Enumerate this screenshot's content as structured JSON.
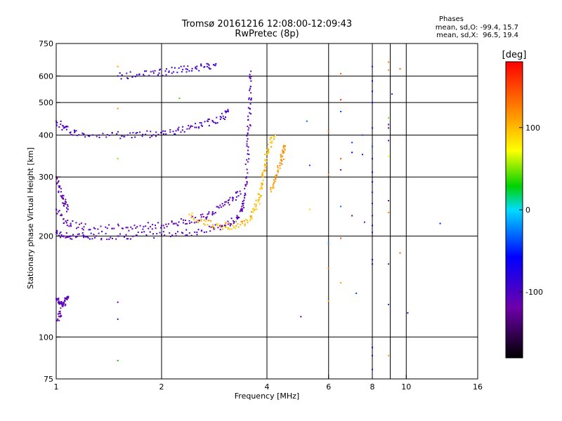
{
  "header": {
    "title": "Tromsø 20161216 12:08:00-12:09:43",
    "subtitle": "RwPretec (8p)"
  },
  "stats": {
    "heading": "Phases",
    "line_o": "mean, sd,O: -99.4, 15.7",
    "line_x": "mean, sd,X:  96.5, 19.4"
  },
  "chart_data": {
    "type": "scatter",
    "xlabel": "Frequency [MHz]",
    "ylabel": "Stationary phase Virtual Height [km]",
    "xscale": "log",
    "yscale": "log",
    "xlim": [
      1,
      16
    ],
    "ylim": [
      75,
      750
    ],
    "xticks": [
      1,
      2,
      4,
      6,
      8,
      10,
      16
    ],
    "xtick_labels": [
      "1",
      "2",
      "4",
      "6",
      "8",
      "10",
      "16"
    ],
    "yticks": [
      75,
      100,
      200,
      300,
      400,
      500,
      600,
      750
    ],
    "ytick_labels": [
      "75",
      "100",
      "200",
      "300",
      "400",
      "500",
      "600",
      "750"
    ],
    "xgrid": [
      2,
      4,
      6,
      8,
      9,
      10
    ],
    "ygrid": [
      100,
      200,
      300,
      400,
      500,
      600
    ],
    "grid": true,
    "colorbar": {
      "label": "[deg]",
      "range": [
        -180,
        180
      ],
      "ticks": [
        -100,
        0,
        100
      ],
      "tick_labels": [
        "-100",
        "0",
        "100"
      ]
    },
    "traces": [
      {
        "name": "O-mode low layer trace",
        "phase": -105,
        "points": [
          [
            1.0,
            205
          ],
          [
            1.05,
            200
          ],
          [
            1.1,
            200
          ],
          [
            1.2,
            200
          ],
          [
            1.3,
            200
          ],
          [
            1.5,
            200
          ],
          [
            1.7,
            201
          ],
          [
            2.0,
            202
          ],
          [
            2.3,
            204
          ],
          [
            2.6,
            207
          ],
          [
            2.9,
            212
          ],
          [
            3.1,
            217
          ],
          [
            3.3,
            226
          ],
          [
            3.4,
            240
          ],
          [
            3.45,
            260
          ],
          [
            3.5,
            300
          ],
          [
            3.53,
            360
          ],
          [
            3.55,
            420
          ],
          [
            3.57,
            480
          ],
          [
            3.58,
            550
          ],
          [
            3.6,
            620
          ]
        ]
      },
      {
        "name": "O-mode upper trace",
        "phase": -100,
        "points": [
          [
            1.0,
            440
          ],
          [
            1.05,
            420
          ],
          [
            1.1,
            408
          ],
          [
            1.2,
            403
          ],
          [
            1.4,
            401
          ],
          [
            1.6,
            400
          ],
          [
            1.8,
            402
          ],
          [
            2.0,
            407
          ],
          [
            2.2,
            412
          ],
          [
            2.4,
            418
          ],
          [
            2.6,
            428
          ],
          [
            2.8,
            440
          ],
          [
            3.0,
            455
          ],
          [
            3.1,
            470
          ]
        ]
      },
      {
        "name": "O-mode top trace",
        "phase": -95,
        "points": [
          [
            1.5,
            600
          ],
          [
            1.7,
            605
          ],
          [
            1.9,
            612
          ],
          [
            2.1,
            620
          ],
          [
            2.3,
            627
          ],
          [
            2.5,
            633
          ],
          [
            2.7,
            640
          ],
          [
            2.85,
            645
          ]
        ]
      },
      {
        "name": "O-mode lower diffuse band",
        "phase": -110,
        "points": [
          [
            1.0,
            240
          ],
          [
            1.05,
            225
          ],
          [
            1.1,
            218
          ],
          [
            1.2,
            213
          ],
          [
            1.4,
            211
          ],
          [
            1.6,
            212
          ],
          [
            1.8,
            214
          ],
          [
            2.0,
            215
          ],
          [
            2.2,
            218
          ],
          [
            2.4,
            222
          ],
          [
            2.6,
            228
          ],
          [
            2.8,
            236
          ],
          [
            3.0,
            246
          ],
          [
            3.2,
            258
          ],
          [
            3.35,
            272
          ]
        ]
      },
      {
        "name": "O-mode spread echoes",
        "phase": -115,
        "points": [
          [
            1.0,
            300
          ],
          [
            1.02,
            280
          ],
          [
            1.04,
            260
          ],
          [
            1.06,
            250
          ],
          [
            1.08,
            240
          ]
        ]
      },
      {
        "name": "X-mode trace",
        "phase": 100,
        "points": [
          [
            2.4,
            232
          ],
          [
            2.6,
            222
          ],
          [
            2.8,
            216
          ],
          [
            3.0,
            214
          ],
          [
            3.2,
            215
          ],
          [
            3.4,
            218
          ],
          [
            3.6,
            228
          ],
          [
            3.7,
            240
          ],
          [
            3.8,
            260
          ],
          [
            3.85,
            280
          ],
          [
            3.9,
            300
          ],
          [
            3.95,
            325
          ],
          [
            4.0,
            350
          ],
          [
            4.1,
            380
          ],
          [
            4.2,
            395
          ]
        ]
      },
      {
        "name": "X-mode upper cusp",
        "phase": 115,
        "points": [
          [
            4.1,
            275
          ],
          [
            4.2,
            290
          ],
          [
            4.3,
            310
          ],
          [
            4.4,
            335
          ],
          [
            4.45,
            355
          ],
          [
            4.5,
            370
          ]
        ]
      },
      {
        "name": "Low-height echoes",
        "phase": -110,
        "points": [
          [
            1.0,
            130
          ],
          [
            1.02,
            127
          ],
          [
            1.04,
            124
          ],
          [
            1.06,
            128
          ],
          [
            1.08,
            132
          ],
          [
            1.01,
            113
          ],
          [
            1.03,
            116
          ]
        ]
      }
    ],
    "scattered_points": [
      {
        "x": 1.5,
        "y": 640,
        "phase": 110
      },
      {
        "x": 1.5,
        "y": 480,
        "phase": 120
      },
      {
        "x": 1.5,
        "y": 340,
        "phase": 50
      },
      {
        "x": 1.5,
        "y": 127,
        "phase": -110
      },
      {
        "x": 1.5,
        "y": 113,
        "phase": -120
      },
      {
        "x": 1.5,
        "y": 85,
        "phase": 30
      },
      {
        "x": 2.25,
        "y": 515,
        "phase": 40
      },
      {
        "x": 5.0,
        "y": 115,
        "phase": -100
      },
      {
        "x": 5.2,
        "y": 440,
        "phase": -30
      },
      {
        "x": 5.3,
        "y": 325,
        "phase": -40
      },
      {
        "x": 5.3,
        "y": 240,
        "phase": 90
      },
      {
        "x": 6.0,
        "y": 410,
        "phase": 140
      },
      {
        "x": 6.0,
        "y": 305,
        "phase": 120
      },
      {
        "x": 6.0,
        "y": 190,
        "phase": -20
      },
      {
        "x": 6.0,
        "y": 160,
        "phase": 130
      },
      {
        "x": 6.0,
        "y": 128,
        "phase": 110
      },
      {
        "x": 6.5,
        "y": 610,
        "phase": 140
      },
      {
        "x": 6.5,
        "y": 510,
        "phase": 160
      },
      {
        "x": 6.5,
        "y": 470,
        "phase": -40
      },
      {
        "x": 6.5,
        "y": 340,
        "phase": 150
      },
      {
        "x": 6.5,
        "y": 315,
        "phase": -120
      },
      {
        "x": 6.5,
        "y": 245,
        "phase": -30
      },
      {
        "x": 6.5,
        "y": 197,
        "phase": 150
      },
      {
        "x": 6.5,
        "y": 145,
        "phase": 110
      },
      {
        "x": 7.0,
        "y": 380,
        "phase": -40
      },
      {
        "x": 7.0,
        "y": 355,
        "phase": -60
      },
      {
        "x": 7.0,
        "y": 230,
        "phase": -110
      },
      {
        "x": 7.2,
        "y": 135,
        "phase": -40
      },
      {
        "x": 7.5,
        "y": 400,
        "phase": -40
      },
      {
        "x": 7.5,
        "y": 350,
        "phase": -50
      },
      {
        "x": 7.6,
        "y": 220,
        "phase": -120
      },
      {
        "x": 8.0,
        "y": 640,
        "phase": -50
      },
      {
        "x": 8.0,
        "y": 580,
        "phase": -60
      },
      {
        "x": 8.0,
        "y": 540,
        "phase": -70
      },
      {
        "x": 8.0,
        "y": 500,
        "phase": -80
      },
      {
        "x": 8.0,
        "y": 420,
        "phase": -90
      },
      {
        "x": 8.0,
        "y": 370,
        "phase": -40
      },
      {
        "x": 8.0,
        "y": 340,
        "phase": -60
      },
      {
        "x": 8.0,
        "y": 310,
        "phase": -70
      },
      {
        "x": 8.0,
        "y": 290,
        "phase": -80
      },
      {
        "x": 8.0,
        "y": 270,
        "phase": -50
      },
      {
        "x": 8.0,
        "y": 250,
        "phase": -90
      },
      {
        "x": 8.0,
        "y": 230,
        "phase": -100
      },
      {
        "x": 8.0,
        "y": 215,
        "phase": -70
      },
      {
        "x": 8.0,
        "y": 205,
        "phase": -110
      },
      {
        "x": 8.0,
        "y": 170,
        "phase": -60
      },
      {
        "x": 8.0,
        "y": 165,
        "phase": -90
      },
      {
        "x": 8.0,
        "y": 93,
        "phase": -60
      },
      {
        "x": 8.0,
        "y": 88,
        "phase": -80
      },
      {
        "x": 8.0,
        "y": 80,
        "phase": -90
      },
      {
        "x": 8.9,
        "y": 660,
        "phase": 130
      },
      {
        "x": 8.9,
        "y": 625,
        "phase": 120
      },
      {
        "x": 8.9,
        "y": 450,
        "phase": 50
      },
      {
        "x": 8.9,
        "y": 430,
        "phase": -120
      },
      {
        "x": 8.9,
        "y": 420,
        "phase": -130
      },
      {
        "x": 8.9,
        "y": 385,
        "phase": -110
      },
      {
        "x": 8.9,
        "y": 345,
        "phase": 70
      },
      {
        "x": 8.9,
        "y": 255,
        "phase": -120
      },
      {
        "x": 8.9,
        "y": 235,
        "phase": 120
      },
      {
        "x": 8.9,
        "y": 165,
        "phase": -110
      },
      {
        "x": 8.9,
        "y": 125,
        "phase": -40
      },
      {
        "x": 8.9,
        "y": 88,
        "phase": 110
      },
      {
        "x": 9.1,
        "y": 530,
        "phase": -110
      },
      {
        "x": 9.6,
        "y": 630,
        "phase": 140
      },
      {
        "x": 9.6,
        "y": 178,
        "phase": 140
      },
      {
        "x": 10.1,
        "y": 118,
        "phase": -90
      },
      {
        "x": 12.5,
        "y": 218,
        "phase": -50
      }
    ]
  }
}
